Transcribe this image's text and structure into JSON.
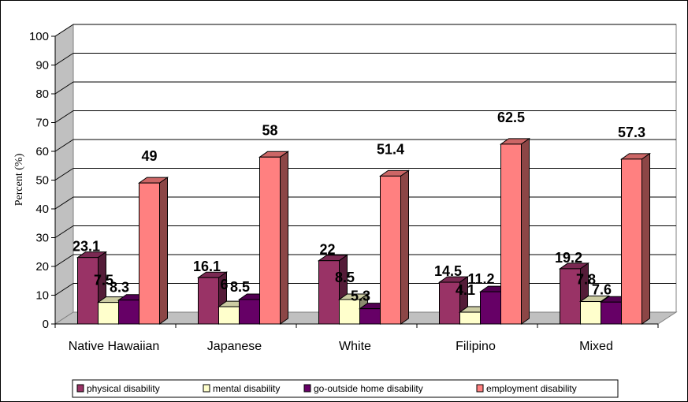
{
  "chart_data": {
    "type": "bar",
    "title": "",
    "xlabel": "",
    "ylabel": "Percent (%)",
    "ylim": [
      0,
      100
    ],
    "yticks": [
      "0",
      "10",
      "20",
      "30",
      "40",
      "50",
      "60",
      "70",
      "80",
      "90",
      "100"
    ],
    "grid": true,
    "legend_position": "bottom",
    "categories": [
      "Native Hawaiian",
      "Japanese",
      "White",
      "Filipino",
      "Mixed"
    ],
    "series": [
      {
        "name": "physical disability",
        "values": [
          23.1,
          16.1,
          22,
          14.5,
          19.2
        ],
        "labels": [
          "23.1",
          "16.1",
          "22",
          "14.5",
          "19.2"
        ],
        "color": "#993366"
      },
      {
        "name": "mental disability",
        "values": [
          7.5,
          6,
          8.5,
          4.1,
          7.8
        ],
        "labels": [
          "7.5",
          "6",
          "8.5",
          "4.1",
          "7.8"
        ],
        "color": "#FFFFCC"
      },
      {
        "name": "go-outside home disability",
        "values": [
          8.3,
          8.5,
          5.3,
          11.2,
          7.6
        ],
        "labels": [
          "8.3",
          "8.5",
          "5.3",
          "11.2",
          "7.6"
        ],
        "color": "#660066"
      },
      {
        "name": "employment disability",
        "values": [
          49,
          58,
          51.4,
          62.5,
          57.3
        ],
        "labels": [
          "49",
          "58",
          "51.4",
          "62.5",
          "57.3"
        ],
        "color": "#FF8080"
      }
    ]
  }
}
